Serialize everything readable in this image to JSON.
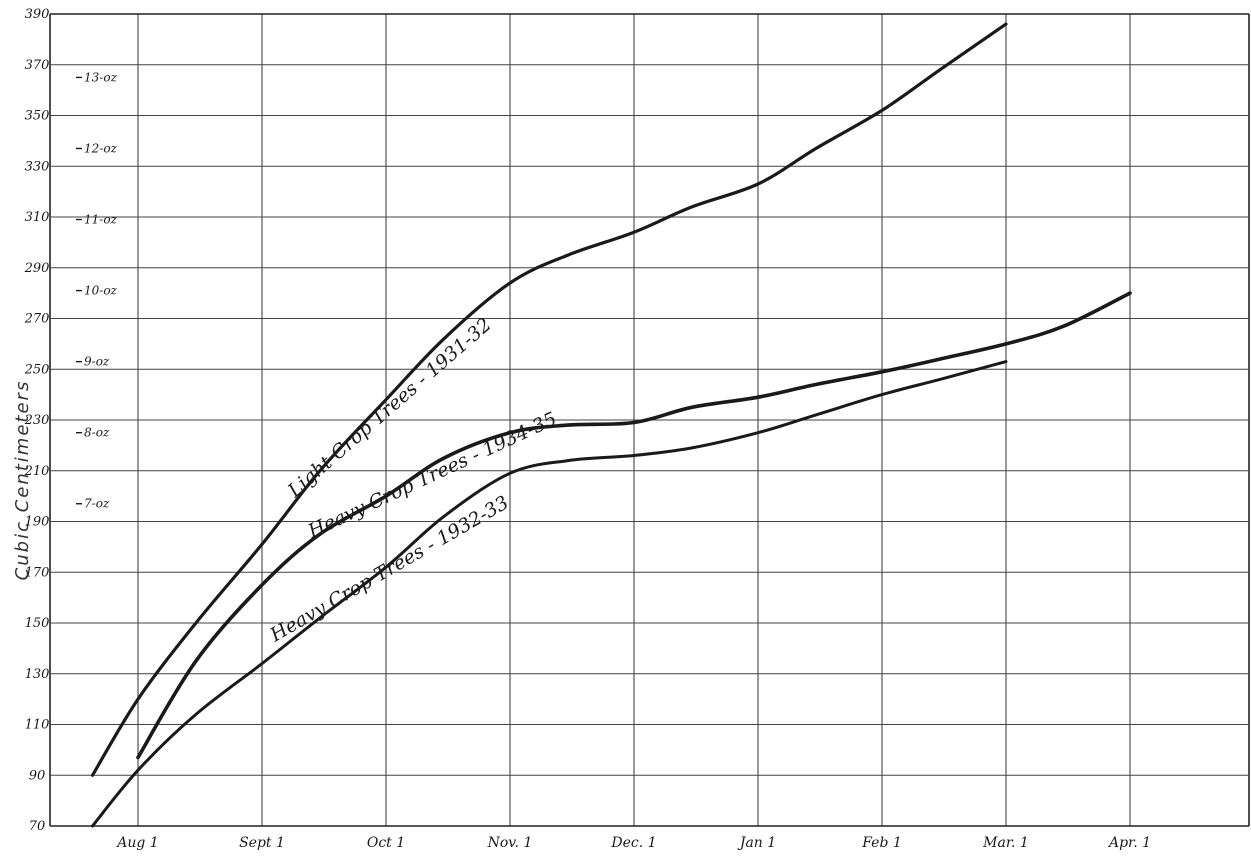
{
  "chart_data": {
    "type": "line",
    "title": "",
    "xlabel": "",
    "ylabel": "Cubic Centimeters",
    "x_ticks": [
      "Aug 1",
      "Sept 1",
      "Oct 1",
      "Nov. 1",
      "Dec. 1",
      "Jan 1",
      "Feb 1",
      "Mar. 1",
      "Apr. 1"
    ],
    "y_ticks": [
      70,
      90,
      110,
      130,
      150,
      170,
      190,
      210,
      230,
      250,
      270,
      290,
      310,
      330,
      350,
      370,
      390
    ],
    "ylim": [
      70,
      390
    ],
    "secondary_ticks": [
      {
        "label": "7-oz",
        "value": 197
      },
      {
        "label": "8-oz",
        "value": 225
      },
      {
        "label": "9-oz",
        "value": 253
      },
      {
        "label": "10-oz",
        "value": 281
      },
      {
        "label": "11-oz",
        "value": 309
      },
      {
        "label": "12-oz",
        "value": 337
      },
      {
        "label": "13-oz",
        "value": 365
      }
    ],
    "grid": true,
    "series": [
      {
        "name": "Light Crop Trees - 1931-32",
        "x": [
          "Jul 20",
          "Aug 1",
          "Aug 15",
          "Sept 1",
          "Sept 15",
          "Oct 1",
          "Oct 15",
          "Nov. 1",
          "Nov. 15",
          "Dec. 1",
          "Dec. 15",
          "Jan 1",
          "Jan 15",
          "Feb 1",
          "Feb 15",
          "Mar. 1"
        ],
        "values": [
          90,
          120,
          150,
          181,
          210,
          238,
          262,
          284,
          295,
          304,
          314,
          323,
          337,
          352,
          368,
          386
        ]
      },
      {
        "name": "Heavy Crop Trees - 1934-35",
        "x": [
          "Aug 1",
          "Aug 15",
          "Sept 1",
          "Sept 15",
          "Oct 1",
          "Oct 15",
          "Nov. 1",
          "Nov. 15",
          "Dec. 1",
          "Dec. 15",
          "Jan 1",
          "Jan 15",
          "Feb 1",
          "Feb 15",
          "Mar. 1",
          "Mar. 15",
          "Apr. 1"
        ],
        "values": [
          97,
          135,
          165,
          185,
          200,
          215,
          225,
          228,
          229,
          235,
          239,
          244,
          249,
          254,
          260,
          267,
          280
        ]
      },
      {
        "name": "Heavy Crop Trees - 1932-33",
        "x": [
          "Jul 20",
          "Aug 1",
          "Aug 15",
          "Sept 1",
          "Sept 15",
          "Oct 1",
          "Oct 15",
          "Nov. 1",
          "Nov. 15",
          "Dec. 1",
          "Dec. 15",
          "Jan 1",
          "Jan 15",
          "Feb 1",
          "Feb 15",
          "Mar. 1"
        ],
        "values": [
          70,
          92,
          114,
          134,
          152,
          172,
          192,
          209,
          214,
          216,
          219,
          225,
          232,
          240,
          246,
          253
        ]
      }
    ],
    "curve_labels": [
      {
        "series": 0,
        "text": "Light Crop Trees - 1931-32"
      },
      {
        "series": 1,
        "text": "Heavy Crop Trees - 1934-35"
      },
      {
        "series": 2,
        "text": "Heavy Crop Trees - 1932-33"
      }
    ]
  }
}
